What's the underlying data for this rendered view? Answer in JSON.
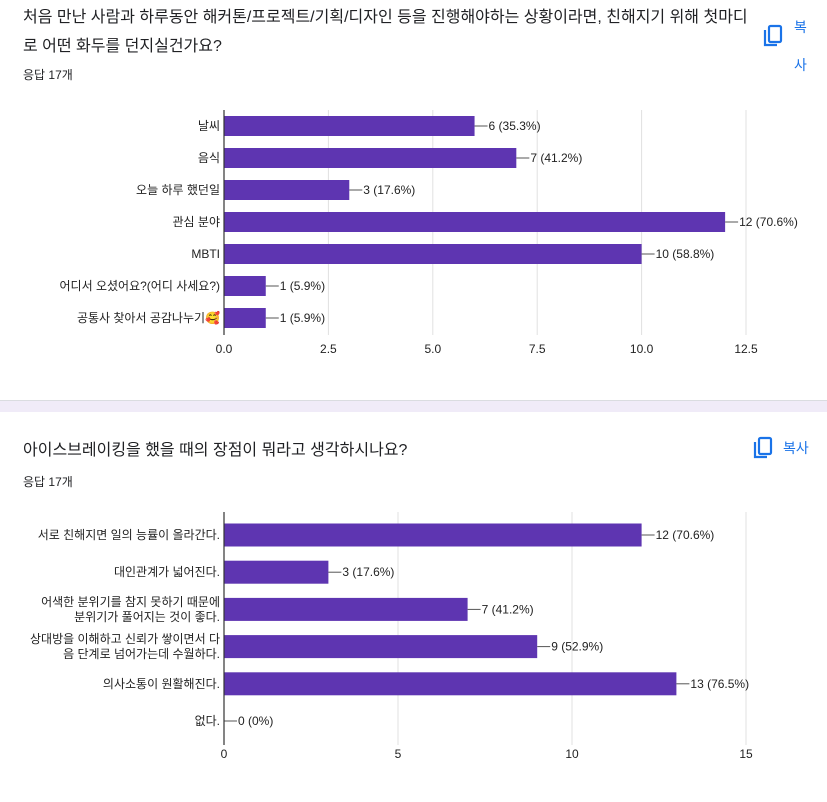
{
  "colors": {
    "bar": "#5e35b1",
    "accent": "#1a73e8",
    "grid": "#e0e0e0",
    "axis": "#333333"
  },
  "questions": [
    {
      "title": "처음 만난 사람과 하루동안 해커톤/프로젝트/기획/디자인 등을 진행해야하는 상황이라면, 친해지기 위해 첫마디로 어떤 화두를 던지실건가요?",
      "response_count": "응답 17개",
      "copy_label": "복사",
      "copy_icon": "copy-icon"
    },
    {
      "title": "아이스브레이킹을 했을 때의 장점이 뭐라고 생각하시나요?",
      "response_count": "응답 17개",
      "copy_label": "복사",
      "copy_icon": "copy-icon"
    }
  ],
  "chart_data": [
    {
      "type": "bar",
      "orientation": "horizontal",
      "categories": [
        "날씨",
        "음식",
        "오늘 하루 했던일",
        "관심 분야",
        "MBTI",
        "어디서 오셨어요?(어디 사세요?)",
        "공통사 찾아서 공감나누기🥰"
      ],
      "values": [
        6,
        7,
        3,
        12,
        10,
        1,
        1
      ],
      "data_labels": [
        "6 (35.3%)",
        "7 (41.2%)",
        "3 (17.6%)",
        "12 (70.6%)",
        "10 (58.8%)",
        "1 (5.9%)",
        "1 (5.9%)"
      ],
      "xlim": [
        0,
        12.5
      ],
      "ticks": [
        0,
        2.5,
        5,
        7.5,
        10,
        12.5
      ],
      "tick_labels": [
        "0.0",
        "2.5",
        "5.0",
        "7.5",
        "10.0",
        "12.5"
      ],
      "grid": true
    },
    {
      "type": "bar",
      "orientation": "horizontal",
      "categories": [
        [
          "서로 친해지면 일의 능률이 올라간다."
        ],
        [
          "대인관계가 넓어진다."
        ],
        [
          "어색한 분위기를 참지 못하기 때문에",
          "분위기가 풀어지는 것이 좋다."
        ],
        [
          "상대방을 이해하고 신뢰가 쌓이면서 다",
          "음 단계로 넘어가는데 수월하다."
        ],
        [
          "의사소통이 원활해진다."
        ],
        [
          "없다."
        ]
      ],
      "values": [
        12,
        3,
        7,
        9,
        13,
        0
      ],
      "data_labels": [
        "12 (70.6%)",
        "3 (17.6%)",
        "7 (41.2%)",
        "9 (52.9%)",
        "13 (76.5%)",
        "0 (0%)"
      ],
      "xlim": [
        0,
        15
      ],
      "ticks": [
        0,
        5,
        10,
        15
      ],
      "tick_labels": [
        "0",
        "5",
        "10",
        "15"
      ],
      "grid": true
    }
  ]
}
